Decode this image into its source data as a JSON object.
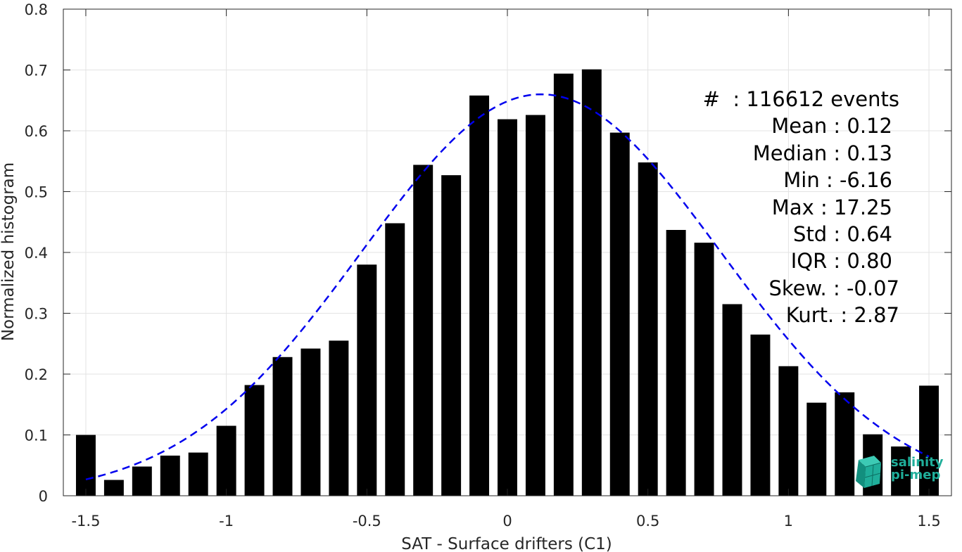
{
  "chart_data": {
    "type": "bar",
    "xlabel": "SAT - Surface drifters (C1)",
    "ylabel": "Normalized histogram",
    "xlim": [
      -1.58,
      1.58
    ],
    "ylim": [
      0,
      0.8
    ],
    "xticks": [
      -1.5,
      -1,
      -0.5,
      0,
      0.5,
      1,
      1.5
    ],
    "xtick_labels": [
      "-1.5",
      "-1",
      "-0.5",
      "0",
      "0.5",
      "1",
      "1.5"
    ],
    "yticks": [
      0,
      0.1,
      0.2,
      0.3,
      0.4,
      0.5,
      0.6,
      0.7,
      0.8
    ],
    "ytick_labels": [
      "0",
      "0.1",
      "0.2",
      "0.3",
      "0.4",
      "0.5",
      "0.6",
      "0.7",
      "0.8"
    ],
    "grid": true,
    "bar_color": "#000000",
    "bar_width": 0.07,
    "bars": {
      "x": [
        -1.5,
        -1.4,
        -1.3,
        -1.2,
        -1.1,
        -1.0,
        -0.9,
        -0.8,
        -0.7,
        -0.6,
        -0.5,
        -0.4,
        -0.3,
        -0.2,
        -0.1,
        0.0,
        0.1,
        0.2,
        0.3,
        0.4,
        0.5,
        0.6,
        0.7,
        0.8,
        0.9,
        1.0,
        1.1,
        1.2,
        1.3,
        1.4,
        1.5
      ],
      "values": [
        0.1,
        0.026,
        0.048,
        0.066,
        0.071,
        0.115,
        0.182,
        0.228,
        0.242,
        0.255,
        0.38,
        0.448,
        0.544,
        0.527,
        0.658,
        0.619,
        0.626,
        0.694,
        0.701,
        0.597,
        0.548,
        0.437,
        0.416,
        0.315,
        0.265,
        0.213,
        0.153,
        0.17,
        0.101,
        0.081,
        0.181
      ]
    },
    "fit_curve": {
      "style": "dashed",
      "color": "#0000ee",
      "mean": 0.12,
      "std": 0.64,
      "peak": 0.66,
      "x_range": [
        -1.5,
        1.5
      ]
    },
    "annotations": [
      {
        "label": "#  ",
        "value": ": 116612 events"
      },
      {
        "label": "Mean",
        "value": " : 0.12"
      },
      {
        "label": "Median",
        "value": " : 0.13"
      },
      {
        "label": "Min",
        "value": " : -6.16"
      },
      {
        "label": "Max",
        "value": " : 17.25"
      },
      {
        "label": "Std",
        "value": " : 0.64"
      },
      {
        "label": "IQR",
        "value": " : 0.80"
      },
      {
        "label": "Skew.",
        "value": " : -0.07"
      },
      {
        "label": "Kurt.",
        "value": " : 2.87"
      }
    ]
  },
  "logo": {
    "line1": "salinity",
    "line2": "pi-mep",
    "color": "#1fae9a"
  }
}
